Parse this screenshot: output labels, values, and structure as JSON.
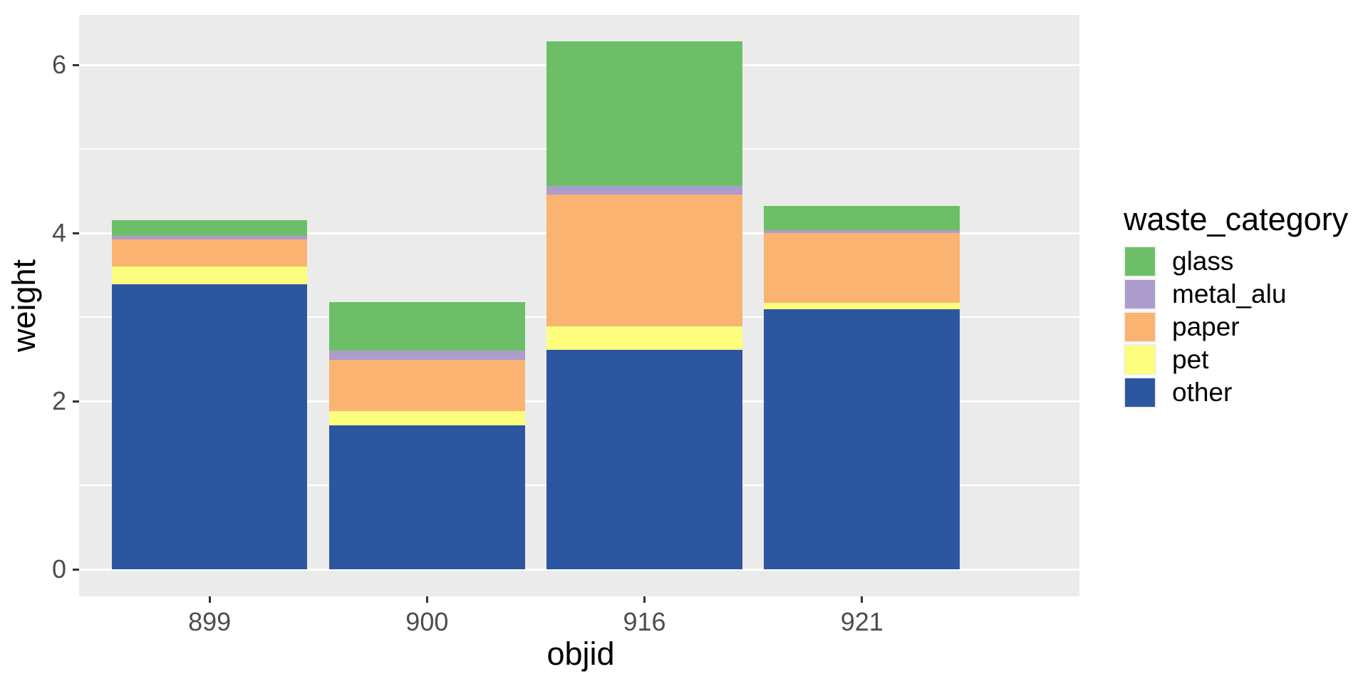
{
  "chart_data": {
    "type": "bar",
    "stacked": true,
    "xlabel": "objid",
    "ylabel": "weight",
    "categories": [
      "899",
      "900",
      "916",
      "921"
    ],
    "series": [
      {
        "name": "other",
        "color": "#2D56A0",
        "values": [
          3.39,
          1.71,
          2.61,
          3.09
        ]
      },
      {
        "name": "pet",
        "color": "#FDFD7E",
        "values": [
          0.21,
          0.17,
          0.28,
          0.08
        ]
      },
      {
        "name": "paper",
        "color": "#FAB370",
        "values": [
          0.32,
          0.61,
          1.57,
          0.83
        ]
      },
      {
        "name": "metal_alu",
        "color": "#AC9CCC",
        "values": [
          0.05,
          0.11,
          0.1,
          0.03
        ]
      },
      {
        "name": "glass",
        "color": "#6DBF67",
        "values": [
          0.18,
          0.58,
          1.72,
          0.29
        ]
      }
    ],
    "legend": {
      "title": "waste_category",
      "position": "right",
      "order": [
        "glass",
        "metal_alu",
        "paper",
        "pet",
        "other"
      ]
    },
    "y_ticks": [
      0,
      2,
      4,
      6
    ],
    "y_minor_ticks": [
      1,
      3,
      5
    ],
    "ylim": [
      -0.31,
      6.6
    ],
    "grid": true,
    "panel_background": "#EBEBEB",
    "gridline_color": "#ffffff"
  }
}
